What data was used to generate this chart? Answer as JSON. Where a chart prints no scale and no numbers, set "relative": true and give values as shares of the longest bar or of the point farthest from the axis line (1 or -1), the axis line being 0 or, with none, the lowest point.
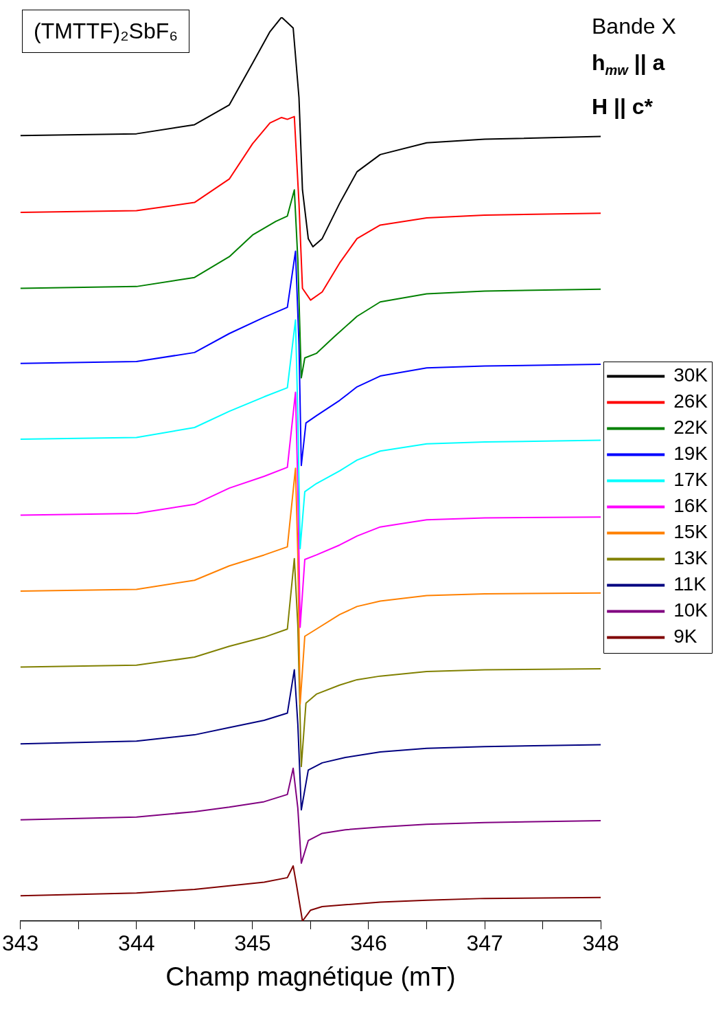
{
  "chart_data": {
    "type": "line",
    "title": "(TMTTF)₂SbF₆",
    "xlabel": "Champ magnétique (mT)",
    "annotations": [
      "Bande X",
      "h$_{mw}$ || a",
      "H || c*"
    ],
    "relative": true,
    "xlim": [
      343,
      348
    ],
    "xticks": [
      343,
      {
        "value": 343.5,
        "label": null
      },
      344,
      {
        "value": 344.5,
        "label": null
      },
      345,
      {
        "value": 345.5,
        "label": null
      },
      346,
      {
        "value": 346.5,
        "label": null
      },
      347,
      {
        "value": 347.5,
        "label": null
      },
      348
    ],
    "grid": false,
    "legend": "right",
    "marker": "none",
    "line_style": "solid",
    "series": [
      {
        "name": "30K",
        "color": "#000000",
        "x": [
          343,
          344,
          344.5,
          344.8,
          345,
          345.15,
          345.25,
          345.35,
          345.4,
          345.43,
          345.48,
          345.52,
          345.6,
          345.75,
          345.9,
          346.1,
          346.5,
          347,
          348
        ],
        "values": [
          0.869,
          0.871,
          0.881,
          0.903,
          0.949,
          0.984,
          1,
          0.988,
          0.911,
          0.809,
          0.755,
          0.746,
          0.755,
          0.794,
          0.829,
          0.848,
          0.861,
          0.865,
          0.868
        ]
      },
      {
        "name": "26K",
        "color": "#ff0000",
        "x": [
          343,
          344,
          344.5,
          344.8,
          345,
          345.15,
          345.25,
          345.3,
          345.36,
          345.4,
          345.43,
          345.5,
          345.6,
          345.75,
          345.9,
          346.1,
          346.5,
          347,
          348
        ],
        "values": [
          0.784,
          0.786,
          0.795,
          0.821,
          0.86,
          0.883,
          0.889,
          0.887,
          0.89,
          0.794,
          0.7,
          0.687,
          0.696,
          0.728,
          0.755,
          0.77,
          0.778,
          0.781,
          0.783
        ]
      },
      {
        "name": "22K",
        "color": "#008000",
        "x": [
          343,
          344,
          344.5,
          344.8,
          345,
          345.2,
          345.3,
          345.36,
          345.39,
          345.42,
          345.45,
          345.55,
          345.7,
          345.9,
          346.1,
          346.5,
          347,
          348
        ],
        "values": [
          0.7,
          0.702,
          0.712,
          0.735,
          0.759,
          0.774,
          0.78,
          0.809,
          0.732,
          0.601,
          0.623,
          0.628,
          0.646,
          0.669,
          0.685,
          0.694,
          0.697,
          0.699
        ]
      },
      {
        "name": "19K",
        "color": "#0000ff",
        "x": [
          343,
          344,
          344.5,
          344.8,
          345.1,
          345.3,
          345.37,
          345.4,
          345.42,
          345.46,
          345.55,
          345.75,
          345.9,
          346.1,
          346.5,
          347,
          348
        ],
        "values": [
          0.617,
          0.619,
          0.629,
          0.65,
          0.668,
          0.679,
          0.741,
          0.638,
          0.504,
          0.551,
          0.559,
          0.576,
          0.591,
          0.603,
          0.612,
          0.614,
          0.616
        ]
      },
      {
        "name": "17K",
        "color": "#00ffff",
        "x": [
          343,
          344,
          344.5,
          344.8,
          345.1,
          345.3,
          345.37,
          345.39,
          345.41,
          345.45,
          345.55,
          345.75,
          345.9,
          346.1,
          346.5,
          347,
          348
        ],
        "values": [
          0.533,
          0.535,
          0.546,
          0.564,
          0.58,
          0.59,
          0.665,
          0.56,
          0.412,
          0.475,
          0.484,
          0.498,
          0.51,
          0.52,
          0.528,
          0.53,
          0.532
        ]
      },
      {
        "name": "16K",
        "color": "#ff00ff",
        "x": [
          343,
          344,
          344.5,
          344.8,
          345.1,
          345.3,
          345.37,
          345.39,
          345.41,
          345.45,
          345.55,
          345.75,
          345.9,
          346.1,
          346.5,
          347,
          348
        ],
        "values": [
          0.449,
          0.451,
          0.461,
          0.479,
          0.492,
          0.502,
          0.585,
          0.482,
          0.325,
          0.4,
          0.405,
          0.416,
          0.426,
          0.436,
          0.444,
          0.446,
          0.447
        ]
      },
      {
        "name": "15K",
        "color": "#ff8000",
        "x": [
          343,
          344,
          344.5,
          344.8,
          345.1,
          345.3,
          345.37,
          345.39,
          345.41,
          345.45,
          345.55,
          345.75,
          345.9,
          346.1,
          346.5,
          347,
          348
        ],
        "values": [
          0.365,
          0.367,
          0.377,
          0.393,
          0.405,
          0.414,
          0.501,
          0.405,
          0.24,
          0.315,
          0.323,
          0.339,
          0.348,
          0.354,
          0.36,
          0.362,
          0.363
        ]
      },
      {
        "name": "13K",
        "color": "#808000",
        "x": [
          343,
          344,
          344.5,
          344.8,
          345.1,
          345.3,
          345.36,
          345.39,
          345.42,
          345.46,
          345.55,
          345.75,
          345.9,
          346.1,
          346.5,
          347,
          348
        ],
        "values": [
          0.281,
          0.283,
          0.292,
          0.304,
          0.314,
          0.323,
          0.401,
          0.327,
          0.171,
          0.241,
          0.251,
          0.261,
          0.267,
          0.271,
          0.276,
          0.278,
          0.279
        ]
      },
      {
        "name": "11K",
        "color": "#000080",
        "x": [
          343,
          344,
          344.5,
          344.8,
          345.1,
          345.3,
          345.36,
          345.39,
          345.42,
          345.48,
          345.6,
          345.8,
          346.1,
          346.5,
          347,
          348
        ],
        "values": [
          0.196,
          0.199,
          0.206,
          0.214,
          0.222,
          0.23,
          0.278,
          0.218,
          0.123,
          0.167,
          0.175,
          0.181,
          0.187,
          0.191,
          0.193,
          0.195
        ]
      },
      {
        "name": "10K",
        "color": "#800080",
        "x": [
          343,
          344,
          344.5,
          344.8,
          345.1,
          345.3,
          345.35,
          345.39,
          345.42,
          345.48,
          345.6,
          345.8,
          346.1,
          346.5,
          347,
          348
        ],
        "values": [
          0.112,
          0.115,
          0.121,
          0.126,
          0.132,
          0.14,
          0.169,
          0.125,
          0.064,
          0.089,
          0.097,
          0.101,
          0.104,
          0.107,
          0.109,
          0.111
        ]
      },
      {
        "name": "9K",
        "color": "#800000",
        "x": [
          343,
          344,
          344.5,
          344.8,
          345.1,
          345.3,
          345.35,
          345.38,
          345.43,
          345.5,
          345.6,
          345.8,
          346.1,
          346.5,
          347,
          348
        ],
        "values": [
          0.028,
          0.031,
          0.035,
          0.039,
          0.043,
          0.048,
          0.061,
          0.039,
          0,
          0.012,
          0.016,
          0.018,
          0.021,
          0.023,
          0.025,
          0.026
        ]
      }
    ]
  }
}
